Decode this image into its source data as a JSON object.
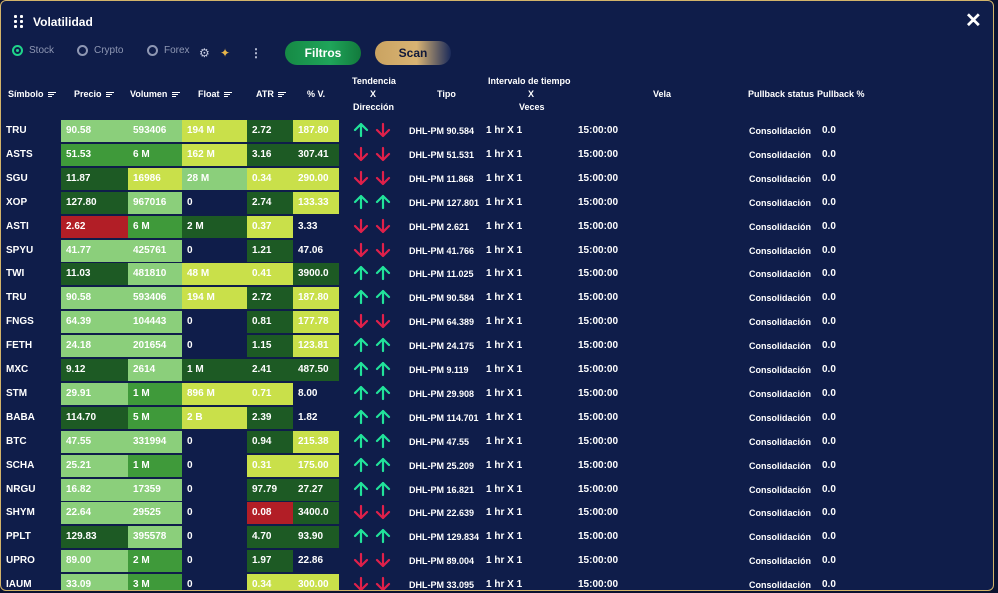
{
  "window": {
    "title": "Volatilidad"
  },
  "toolbar": {
    "radios": [
      {
        "label": "Stock",
        "selected": true
      },
      {
        "label": "Crypto",
        "selected": false
      },
      {
        "label": "Forex",
        "selected": false
      }
    ],
    "filtros_label": "Filtros",
    "scan_label": "Scan"
  },
  "colors": {
    "accent_green": "#1fd48a",
    "gold": "#d2b46a",
    "bg": "#0f1d4a"
  },
  "headers": {
    "simbolo": "Símbolo",
    "precio": "Precio",
    "volumen": "Volumen",
    "float": "Float",
    "atr": "ATR",
    "pv": "% V.",
    "tendencia_1": "Tendencia",
    "tendencia_2": "X",
    "tendencia_3": "Dirección",
    "tipo": "Tipo",
    "intervalo_1": "Intervalo de tiempo",
    "intervalo_2": "X",
    "intervalo_3": "Veces",
    "vela": "Vela",
    "pullback_status": "Pullback status",
    "pullback_pct": "Pullback %"
  },
  "rows": [
    {
      "sym": "TRU",
      "precio": "90.58",
      "pc": "g-light",
      "vol": "593406",
      "vc": "g-light",
      "float": "194 M",
      "fc": "y-lime",
      "atr": "2.72",
      "ac": "g-dark",
      "pv": "187.80",
      "pvc": "y-lime",
      "a1": "up",
      "a2": "down",
      "tipo": "DHL-PM 90.584",
      "int": "1 hr X 1",
      "vela": "15:00:00",
      "status": "Consolidación",
      "pct": "0.0"
    },
    {
      "sym": "ASTS",
      "precio": "51.53",
      "pc": "g-mid",
      "vol": "6 M",
      "vc": "g-mid",
      "float": "162 M",
      "fc": "y-lime",
      "atr": "3.16",
      "ac": "g-dark",
      "pv": "307.41",
      "pvc": "g-dark",
      "a1": "down",
      "a2": "down",
      "tipo": "DHL-PM 51.531",
      "int": "1 hr X 1",
      "vela": "15:00:00",
      "status": "Consolidación",
      "pct": "0.0"
    },
    {
      "sym": "SGU",
      "precio": "11.87",
      "pc": "g-dark",
      "vol": "16986",
      "vc": "y-lime",
      "float": "28 M",
      "fc": "g-light",
      "atr": "0.34",
      "ac": "y-lime",
      "pv": "290.00",
      "pvc": "y-lime",
      "a1": "down",
      "a2": "down",
      "tipo": "DHL-PM 11.868",
      "int": "1 hr X 1",
      "vela": "15:00:00",
      "status": "Consolidación",
      "pct": "0.0"
    },
    {
      "sym": "XOP",
      "precio": "127.80",
      "pc": "g-dark",
      "vol": "967016",
      "vc": "g-light",
      "float": "0",
      "fc": "none",
      "atr": "2.74",
      "ac": "g-dark",
      "pv": "133.33",
      "pvc": "y-lime",
      "a1": "up",
      "a2": "up",
      "tipo": "DHL-PM 127.801",
      "int": "1 hr X 1",
      "vela": "15:00:00",
      "status": "Consolidación",
      "pct": "0.0"
    },
    {
      "sym": "ASTI",
      "precio": "2.62",
      "pc": "red",
      "vol": "6 M",
      "vc": "g-mid",
      "float": "2 M",
      "fc": "g-dark",
      "atr": "0.37",
      "ac": "y-lime",
      "pv": "3.33",
      "pvc": "none",
      "a1": "down",
      "a2": "down",
      "tipo": "DHL-PM 2.621",
      "int": "1 hr X 1",
      "vela": "15:00:00",
      "status": "Consolidación",
      "pct": "0.0"
    },
    {
      "sym": "SPYU",
      "precio": "41.77",
      "pc": "g-light",
      "vol": "425761",
      "vc": "g-light",
      "float": "0",
      "fc": "none",
      "atr": "1.21",
      "ac": "g-dark",
      "pv": "47.06",
      "pvc": "none",
      "a1": "down",
      "a2": "down",
      "tipo": "DHL-PM 41.766",
      "int": "1 hr X 1",
      "vela": "15:00:00",
      "status": "Consolidación",
      "pct": "0.0"
    },
    {
      "sym": "TWI",
      "precio": "11.03",
      "pc": "g-dark",
      "vol": "481810",
      "vc": "g-light",
      "float": "48 M",
      "fc": "y-lime",
      "atr": "0.41",
      "ac": "y-lime",
      "pv": "3900.0",
      "pvc": "g-dark",
      "a1": "up",
      "a2": "up",
      "tipo": "DHL-PM 11.025",
      "int": "1 hr X 1",
      "vela": "15:00:00",
      "status": "Consolidación",
      "pct": "0.0"
    },
    {
      "sym": "TRU",
      "precio": "90.58",
      "pc": "g-light",
      "vol": "593406",
      "vc": "g-light",
      "float": "194 M",
      "fc": "y-lime",
      "atr": "2.72",
      "ac": "g-dark",
      "pv": "187.80",
      "pvc": "y-lime",
      "a1": "up",
      "a2": "up",
      "tipo": "DHL-PM 90.584",
      "int": "1 hr X 1",
      "vela": "15:00:00",
      "status": "Consolidación",
      "pct": "0.0"
    },
    {
      "sym": "FNGS",
      "precio": "64.39",
      "pc": "g-light",
      "vol": "104443",
      "vc": "g-light",
      "float": "0",
      "fc": "none",
      "atr": "0.81",
      "ac": "g-dark",
      "pv": "177.78",
      "pvc": "y-lime",
      "a1": "down",
      "a2": "down",
      "tipo": "DHL-PM 64.389",
      "int": "1 hr X 1",
      "vela": "15:00:00",
      "status": "Consolidación",
      "pct": "0.0"
    },
    {
      "sym": "FETH",
      "precio": "24.18",
      "pc": "g-light",
      "vol": "201654",
      "vc": "g-light",
      "float": "0",
      "fc": "none",
      "atr": "1.15",
      "ac": "g-dark",
      "pv": "123.81",
      "pvc": "y-lime",
      "a1": "up",
      "a2": "up",
      "tipo": "DHL-PM 24.175",
      "int": "1 hr X 1",
      "vela": "15:00:00",
      "status": "Consolidación",
      "pct": "0.0"
    },
    {
      "sym": "MXC",
      "precio": "9.12",
      "pc": "g-dark",
      "vol": "2614",
      "vc": "g-light",
      "float": "1 M",
      "fc": "g-dark",
      "atr": "2.41",
      "ac": "g-dark",
      "pv": "487.50",
      "pvc": "g-dark",
      "a1": "up",
      "a2": "up",
      "tipo": "DHL-PM 9.119",
      "int": "1 hr X 1",
      "vela": "15:00:00",
      "status": "Consolidación",
      "pct": "0.0"
    },
    {
      "sym": "STM",
      "precio": "29.91",
      "pc": "g-light",
      "vol": "1 M",
      "vc": "g-mid",
      "float": "896 M",
      "fc": "y-lime",
      "atr": "0.71",
      "ac": "y-lime",
      "pv": "8.00",
      "pvc": "none",
      "a1": "up",
      "a2": "up",
      "tipo": "DHL-PM 29.908",
      "int": "1 hr X 1",
      "vela": "15:00:00",
      "status": "Consolidación",
      "pct": "0.0"
    },
    {
      "sym": "BABA",
      "precio": "114.70",
      "pc": "g-dark",
      "vol": "5 M",
      "vc": "g-mid",
      "float": "2 B",
      "fc": "y-lime",
      "atr": "2.39",
      "ac": "g-dark",
      "pv": "1.82",
      "pvc": "none",
      "a1": "up",
      "a2": "up",
      "tipo": "DHL-PM 114.701",
      "int": "1 hr X 1",
      "vela": "15:00:00",
      "status": "Consolidación",
      "pct": "0.0"
    },
    {
      "sym": "BTC",
      "precio": "47.55",
      "pc": "g-light",
      "vol": "331994",
      "vc": "g-light",
      "float": "0",
      "fc": "none",
      "atr": "0.94",
      "ac": "g-dark",
      "pv": "215.38",
      "pvc": "y-lime",
      "a1": "up",
      "a2": "up",
      "tipo": "DHL-PM 47.55",
      "int": "1 hr X 1",
      "vela": "15:00:00",
      "status": "Consolidación",
      "pct": "0.0"
    },
    {
      "sym": "SCHA",
      "precio": "25.21",
      "pc": "g-light",
      "vol": "1 M",
      "vc": "g-mid",
      "float": "0",
      "fc": "none",
      "atr": "0.31",
      "ac": "y-lime",
      "pv": "175.00",
      "pvc": "y-lime",
      "a1": "up",
      "a2": "up",
      "tipo": "DHL-PM 25.209",
      "int": "1 hr X 1",
      "vela": "15:00:00",
      "status": "Consolidación",
      "pct": "0.0"
    },
    {
      "sym": "NRGU",
      "precio": "16.82",
      "pc": "g-light",
      "vol": "17359",
      "vc": "g-light",
      "float": "0",
      "fc": "none",
      "atr": "97.79",
      "ac": "g-dark",
      "pv": "27.27",
      "pvc": "g-dark",
      "a1": "up",
      "a2": "up",
      "tipo": "DHL-PM 16.821",
      "int": "1 hr X 1",
      "vela": "15:00:00",
      "status": "Consolidación",
      "pct": "0.0"
    },
    {
      "sym": "SHYM",
      "precio": "22.64",
      "pc": "g-light",
      "vol": "29525",
      "vc": "g-light",
      "float": "0",
      "fc": "none",
      "atr": "0.08",
      "ac": "red",
      "pv": "3400.0",
      "pvc": "g-dark",
      "a1": "down",
      "a2": "down",
      "tipo": "DHL-PM 22.639",
      "int": "1 hr X 1",
      "vela": "15:00:00",
      "status": "Consolidación",
      "pct": "0.0"
    },
    {
      "sym": "PPLT",
      "precio": "129.83",
      "pc": "g-dark",
      "vol": "395578",
      "vc": "g-light",
      "float": "0",
      "fc": "none",
      "atr": "4.70",
      "ac": "g-dark",
      "pv": "93.90",
      "pvc": "g-dark",
      "a1": "up",
      "a2": "up",
      "tipo": "DHL-PM 129.834",
      "int": "1 hr X 1",
      "vela": "15:00:00",
      "status": "Consolidación",
      "pct": "0.0"
    },
    {
      "sym": "UPRO",
      "precio": "89.00",
      "pc": "g-light",
      "vol": "2 M",
      "vc": "g-mid",
      "float": "0",
      "fc": "none",
      "atr": "1.97",
      "ac": "g-dark",
      "pv": "22.86",
      "pvc": "none",
      "a1": "down",
      "a2": "down",
      "tipo": "DHL-PM 89.004",
      "int": "1 hr X 1",
      "vela": "15:00:00",
      "status": "Consolidación",
      "pct": "0.0"
    },
    {
      "sym": "IAUM",
      "precio": "33.09",
      "pc": "g-light",
      "vol": "3 M",
      "vc": "g-mid",
      "float": "0",
      "fc": "none",
      "atr": "0.34",
      "ac": "y-lime",
      "pv": "300.00",
      "pvc": "y-lime",
      "a1": "down",
      "a2": "down",
      "tipo": "DHL-PM 33.095",
      "int": "1 hr X 1",
      "vela": "15:00:00",
      "status": "Consolidación",
      "pct": "0.0"
    }
  ]
}
